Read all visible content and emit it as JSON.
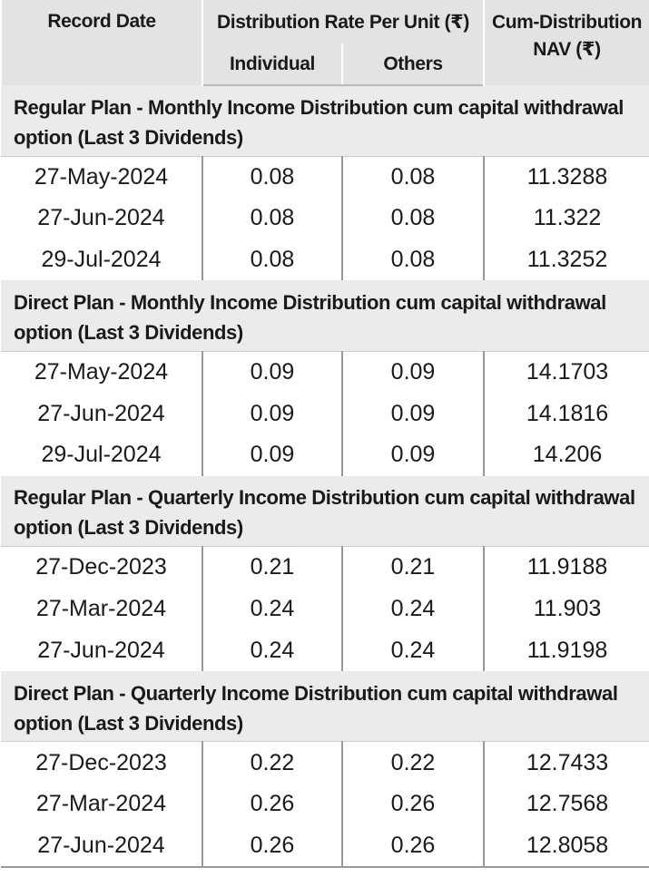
{
  "header": {
    "record_date": "Record Date",
    "distribution_rate": "Distribution Rate Per Unit (₹)",
    "individual": "Individual",
    "others": "Others",
    "cum_nav": "Cum-Distribution NAV (₹)"
  },
  "sections": [
    {
      "title": "Regular Plan - Monthly Income Distribution cum capital withdrawal option (Last 3 Dividends)",
      "rows": [
        [
          "27-May-2024",
          "0.08",
          "0.08",
          "11.3288"
        ],
        [
          "27-Jun-2024",
          "0.08",
          "0.08",
          "11.322"
        ],
        [
          "29-Jul-2024",
          "0.08",
          "0.08",
          "11.3252"
        ]
      ]
    },
    {
      "title": "Direct Plan - Monthly Income Distribution cum capital withdrawal option (Last 3 Dividends)",
      "rows": [
        [
          "27-May-2024",
          "0.09",
          "0.09",
          "14.1703"
        ],
        [
          "27-Jun-2024",
          "0.09",
          "0.09",
          "14.1816"
        ],
        [
          "29-Jul-2024",
          "0.09",
          "0.09",
          "14.206"
        ]
      ]
    },
    {
      "title": "Regular Plan - Quarterly Income Distribution cum capital withdrawal option (Last 3 Dividends)",
      "rows": [
        [
          "27-Dec-2023",
          "0.21",
          "0.21",
          "11.9188"
        ],
        [
          "27-Mar-2024",
          "0.24",
          "0.24",
          "11.903"
        ],
        [
          "27-Jun-2024",
          "0.24",
          "0.24",
          "11.9198"
        ]
      ]
    },
    {
      "title": "Direct Plan - Quarterly Income Distribution cum capital withdrawal option (Last 3 Dividends)",
      "rows": [
        [
          "27-Dec-2023",
          "0.22",
          "0.22",
          "12.7433"
        ],
        [
          "27-Mar-2024",
          "0.26",
          "0.26",
          "12.7568"
        ],
        [
          "27-Jun-2024",
          "0.26",
          "0.26",
          "12.8058"
        ]
      ]
    }
  ]
}
